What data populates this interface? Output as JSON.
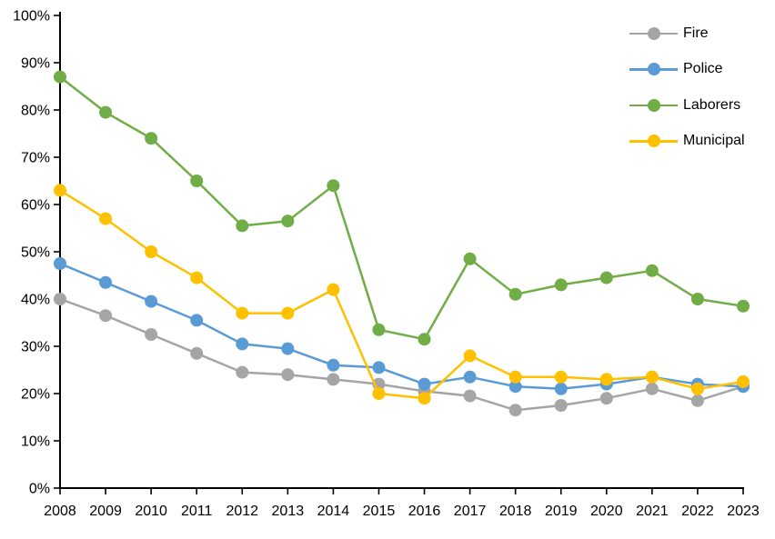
{
  "chart_data": {
    "type": "line",
    "title": "",
    "xlabel": "",
    "ylabel": "",
    "categories": [
      "2008",
      "2009",
      "2010",
      "2011",
      "2012",
      "2013",
      "2014",
      "2015",
      "2016",
      "2017",
      "2018",
      "2019",
      "2020",
      "2021",
      "2022",
      "2023"
    ],
    "series": [
      {
        "name": "Fire",
        "color": "#A5A5A5",
        "values": [
          40.0,
          36.5,
          32.5,
          28.5,
          24.5,
          24.0,
          23.0,
          22.0,
          20.5,
          19.5,
          16.5,
          17.5,
          19.0,
          21.0,
          18.5,
          21.5
        ]
      },
      {
        "name": "Police",
        "color": "#5B9BD5",
        "values": [
          47.5,
          43.5,
          39.5,
          35.5,
          30.5,
          29.5,
          26.0,
          25.5,
          22.0,
          23.5,
          21.5,
          21.0,
          22.0,
          23.5,
          22.0,
          21.5
        ]
      },
      {
        "name": "Laborers",
        "color": "#70AD47",
        "values": [
          87.0,
          79.5,
          74.0,
          65.0,
          55.5,
          56.5,
          64.0,
          33.5,
          31.5,
          48.5,
          41.0,
          43.0,
          44.5,
          46.0,
          40.0,
          38.5
        ]
      },
      {
        "name": "Municipal",
        "color": "#FFC000",
        "values": [
          63.0,
          57.0,
          50.0,
          44.5,
          37.0,
          37.0,
          42.0,
          20.0,
          19.0,
          28.0,
          23.5,
          23.5,
          23.0,
          23.5,
          21.0,
          22.5
        ]
      }
    ],
    "y_axis": {
      "min": 0,
      "max": 100,
      "tick_step": 10,
      "tick_labels": [
        "0%",
        "10%",
        "20%",
        "30%",
        "40%",
        "50%",
        "60%",
        "70%",
        "80%",
        "90%",
        "100%"
      ]
    },
    "legend": {
      "position": "top-right",
      "entries": [
        "Fire",
        "Police",
        "Laborers",
        "Municipal"
      ]
    },
    "grid": false,
    "axis_color": "#000000",
    "text_color": "#000000",
    "background_color": "#FFFFFF"
  }
}
